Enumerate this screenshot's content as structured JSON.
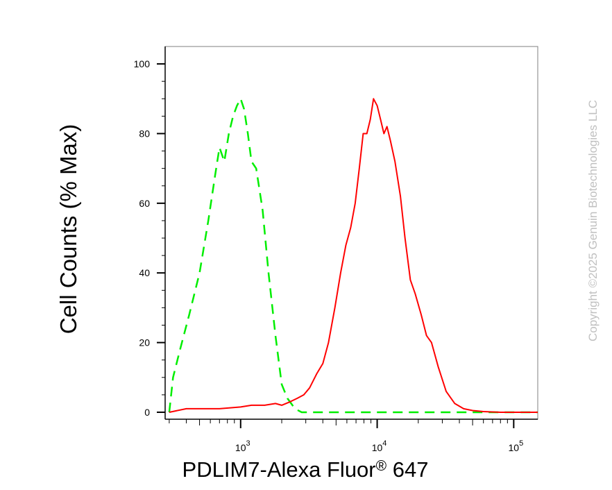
{
  "chart_data": {
    "type": "line",
    "xlabel": "PDLIM7-Alexa Fluor",
    "xlabel_mark": "®",
    "xlabel_tail": " 647",
    "ylabel": "Cell Counts (% Max)",
    "x_scale": "log",
    "xlim": [
      280,
      150000
    ],
    "ylim": [
      -2,
      105
    ],
    "y_ticks": [
      {
        "value": 0,
        "label": "0"
      },
      {
        "value": 20,
        "label": "20"
      },
      {
        "value": 40,
        "label": "40"
      },
      {
        "value": 60,
        "label": "60"
      },
      {
        "value": 80,
        "label": "80"
      },
      {
        "value": 100,
        "label": "100"
      }
    ],
    "x_ticks": [
      {
        "value": 1000,
        "base": "10",
        "exp": "3"
      },
      {
        "value": 10000,
        "base": "10",
        "exp": "4"
      },
      {
        "value": 100000,
        "base": "10",
        "exp": "5"
      }
    ],
    "grid": false,
    "legend": "none",
    "series": [
      {
        "color": "#00ee00",
        "dash": true,
        "x": [
          300,
          320,
          360,
          420,
          500,
          580,
          650,
          700,
          760,
          820,
          880,
          940,
          1000,
          1060,
          1130,
          1200,
          1300,
          1450,
          1600,
          1800,
          2000,
          2200,
          2500,
          2800,
          3200,
          4000,
          6000,
          10000,
          30000,
          100000,
          150000
        ],
        "y": [
          0,
          10,
          18,
          28,
          40,
          55,
          68,
          76,
          72,
          80,
          85,
          88,
          90,
          87,
          80,
          72,
          70,
          58,
          40,
          22,
          8,
          4,
          1,
          0,
          0,
          0,
          0,
          0,
          0,
          0,
          0
        ]
      },
      {
        "color": "#ff0000",
        "dash": false,
        "x": [
          300,
          400,
          500,
          700,
          1000,
          1200,
          1500,
          1800,
          2000,
          2300,
          2600,
          2900,
          3200,
          3600,
          4000,
          4400,
          4900,
          5400,
          5900,
          6400,
          6900,
          7400,
          7900,
          8400,
          8900,
          9400,
          10000,
          10600,
          11200,
          11800,
          12500,
          13500,
          14800,
          16000,
          17500,
          19000,
          21000,
          23000,
          25000,
          28000,
          32000,
          37000,
          43000,
          50000,
          60000,
          80000,
          100000,
          150000
        ],
        "y": [
          0,
          1,
          1,
          1,
          1.5,
          2,
          2,
          2.5,
          2,
          3,
          4,
          5,
          7,
          11,
          14,
          20,
          30,
          40,
          48,
          53,
          60,
          70,
          80,
          80,
          84,
          90,
          88,
          84,
          80,
          82,
          78,
          72,
          62,
          50,
          38,
          34,
          28,
          22,
          20,
          13,
          6,
          2.5,
          1,
          0.5,
          0.2,
          0,
          0,
          0
        ]
      }
    ]
  },
  "watermark": "Copyright ©2025 Genuin Biotechnologies LLC"
}
